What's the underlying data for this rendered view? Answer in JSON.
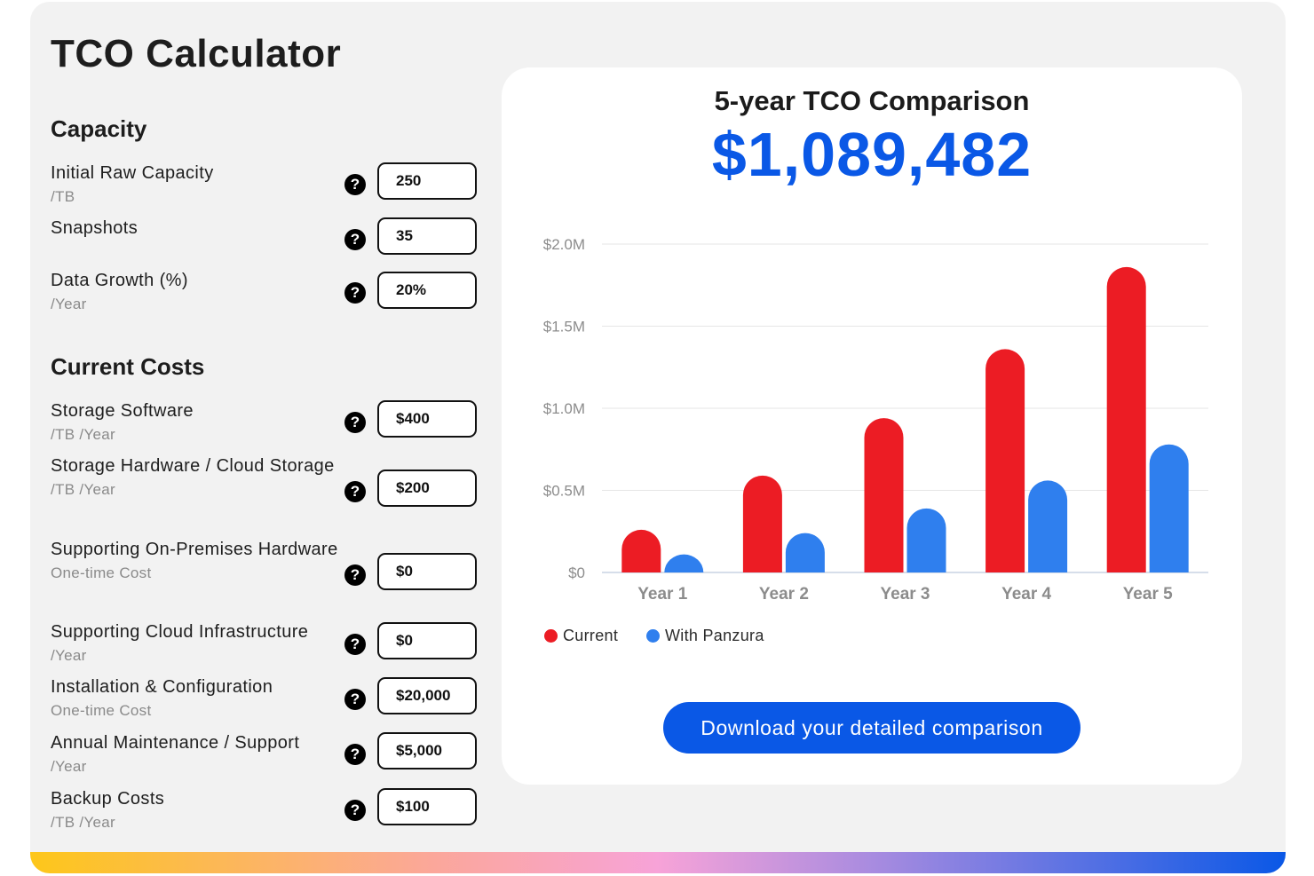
{
  "title": "TCO Calculator",
  "sections": {
    "capacity": "Capacity",
    "current_costs": "Current Costs"
  },
  "fields": [
    {
      "label": "Initial Raw Capacity",
      "unit": "/TB",
      "value": "250"
    },
    {
      "label": "Snapshots",
      "unit": "",
      "value": "35"
    },
    {
      "label": "Data Growth (%)",
      "unit": "/Year",
      "value": "20%"
    },
    {
      "label": "Storage Software",
      "unit": "/TB /Year",
      "value": "$400"
    },
    {
      "label": "Storage Hardware / Cloud Storage",
      "unit": "/TB /Year",
      "value": "$200"
    },
    {
      "label": "Supporting On-Premises Hardware",
      "unit": "One-time Cost",
      "value": "$0"
    },
    {
      "label": "Supporting Cloud Infrastructure",
      "unit": "/Year",
      "value": "$0"
    },
    {
      "label": "Installation & Configuration",
      "unit": "One-time Cost",
      "value": "$20,000"
    },
    {
      "label": "Annual Maintenance / Support",
      "unit": "/Year",
      "value": "$5,000"
    },
    {
      "label": "Backup Costs",
      "unit": "/TB /Year",
      "value": "$100"
    }
  ],
  "help_icon": {
    "glyph": "?",
    "name": "question-circle-icon"
  },
  "chart": {
    "heading": "5-year TCO Comparison",
    "total": "$1,089,482",
    "download_label": "Download your detailed comparison"
  },
  "chart_data": {
    "type": "bar",
    "categories": [
      "Year 1",
      "Year 2",
      "Year 3",
      "Year 4",
      "Year 5"
    ],
    "series": [
      {
        "name": "Current",
        "color": "#ec1c24",
        "values": [
          0.26,
          0.59,
          0.94,
          1.36,
          1.86
        ]
      },
      {
        "name": "With Panzura",
        "color": "#2f7fee",
        "values": [
          0.11,
          0.24,
          0.39,
          0.56,
          0.78
        ]
      }
    ],
    "y_ticks": [
      "$0",
      "$0.5M",
      "$1.0M",
      "$1.5M",
      "$2.0M"
    ],
    "y_tick_values": [
      0,
      0.5,
      1.0,
      1.5,
      2.0
    ],
    "ylim": [
      0,
      2.0
    ],
    "unit": "$M",
    "grid": true,
    "legend": "bottom-left"
  },
  "colors": {
    "accent": "#0a58e6",
    "current": "#ec1c24",
    "panzura": "#2f7fee",
    "card_bg": "#f2f2f2"
  }
}
